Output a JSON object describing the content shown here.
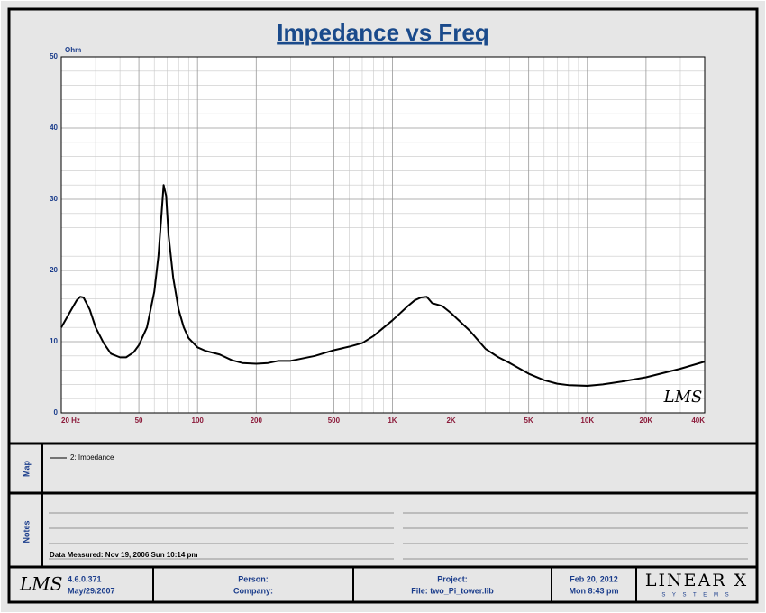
{
  "chart_data": {
    "type": "line",
    "title": "Impedance vs Freq",
    "y_unit": "Ohm",
    "watermark": "LMS",
    "x": [
      20,
      22,
      24,
      25,
      26,
      28,
      30,
      33,
      36,
      40,
      43,
      47,
      50,
      55,
      60,
      63,
      65,
      67,
      69,
      71,
      75,
      80,
      85,
      90,
      100,
      110,
      130,
      150,
      170,
      200,
      230,
      260,
      300,
      400,
      500,
      600,
      700,
      800,
      1000,
      1200,
      1300,
      1400,
      1500,
      1600,
      1800,
      2000,
      2500,
      3000,
      3500,
      4000,
      5000,
      6000,
      7000,
      8000,
      10000,
      12000,
      15000,
      20000,
      30000,
      40000
    ],
    "series": [
      {
        "name": "2: Impedance",
        "color": "#000000",
        "values": [
          12,
          14,
          15.8,
          16.3,
          16.2,
          14.5,
          12,
          9.8,
          8.3,
          7.8,
          7.8,
          8.5,
          9.5,
          12,
          17,
          22,
          27,
          32,
          30.5,
          25,
          19,
          14.5,
          12,
          10.5,
          9.2,
          8.7,
          8.2,
          7.4,
          7,
          6.9,
          7,
          7.3,
          7.3,
          8,
          8.8,
          9.3,
          9.8,
          10.8,
          13,
          15,
          15.8,
          16.2,
          16.3,
          15.4,
          15,
          14,
          11.5,
          9,
          7.8,
          7,
          5.5,
          4.6,
          4.1,
          3.9,
          3.8,
          4,
          4.4,
          5,
          6.2,
          7.2
        ]
      }
    ],
    "xscale": "log",
    "xlim": [
      20,
      40000
    ],
    "ylim": [
      0,
      50
    ],
    "xticks": [
      {
        "value": 20,
        "label": "20  Hz"
      },
      50,
      100,
      200,
      500,
      {
        "value": 1000,
        "label": "1K"
      },
      {
        "value": 2000,
        "label": "2K"
      },
      {
        "value": 5000,
        "label": "5K"
      },
      {
        "value": 10000,
        "label": "10K"
      },
      {
        "value": 20000,
        "label": "20K"
      },
      {
        "value": 40000,
        "label": "40K"
      }
    ],
    "xminorticks": [
      30,
      40,
      60,
      70,
      80,
      90,
      300,
      400,
      600,
      700,
      800,
      900,
      3000,
      4000,
      6000,
      7000,
      8000,
      9000,
      30000
    ],
    "yticks": [
      0,
      10,
      20,
      30,
      40,
      50
    ],
    "yminorticks": [
      2,
      4,
      6,
      8,
      12,
      14,
      16,
      18,
      22,
      24,
      26,
      28,
      32,
      34,
      36,
      38,
      42,
      44,
      46,
      48
    ],
    "grid": true
  },
  "map": {
    "label": "Map"
  },
  "notes": {
    "label": "Notes",
    "measured": "Data Measured: Nov 19, 2006  Sun 10:14 pm"
  },
  "footer": {
    "logo": "LMS",
    "version": "4.6.0.371",
    "version_date": "May/29/2007",
    "person": "Person:",
    "company": "Company:",
    "project": "Project:",
    "file": "File: two_Pi_tower.lib",
    "date": "Feb 20, 2012",
    "time": "Mon  8:43 pm",
    "brand": "LINEAR X",
    "brand_sub": "S Y S T E M S"
  }
}
